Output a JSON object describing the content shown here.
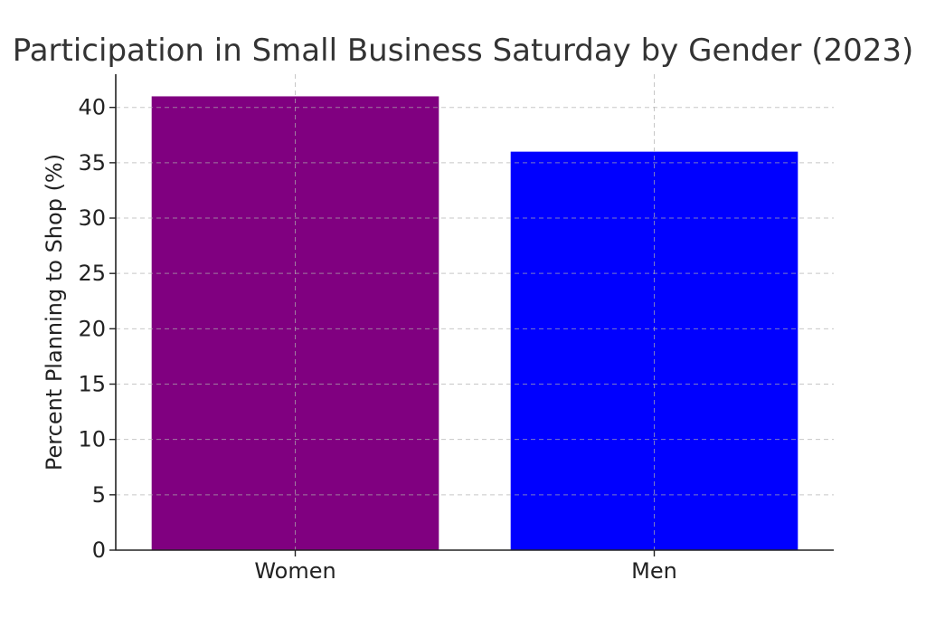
{
  "chart_data": {
    "type": "bar",
    "title": "Participation in Small Business Saturday by Gender (2023)",
    "xlabel": "",
    "ylabel": "Percent Planning to Shop (%)",
    "categories": [
      "Women",
      "Men"
    ],
    "values": [
      41,
      36
    ],
    "colors": [
      "#800080",
      "#0000ff"
    ],
    "ylim": [
      0,
      43
    ],
    "yticks": [
      0,
      5,
      10,
      15,
      20,
      25,
      30,
      35,
      40
    ],
    "grid": true
  }
}
